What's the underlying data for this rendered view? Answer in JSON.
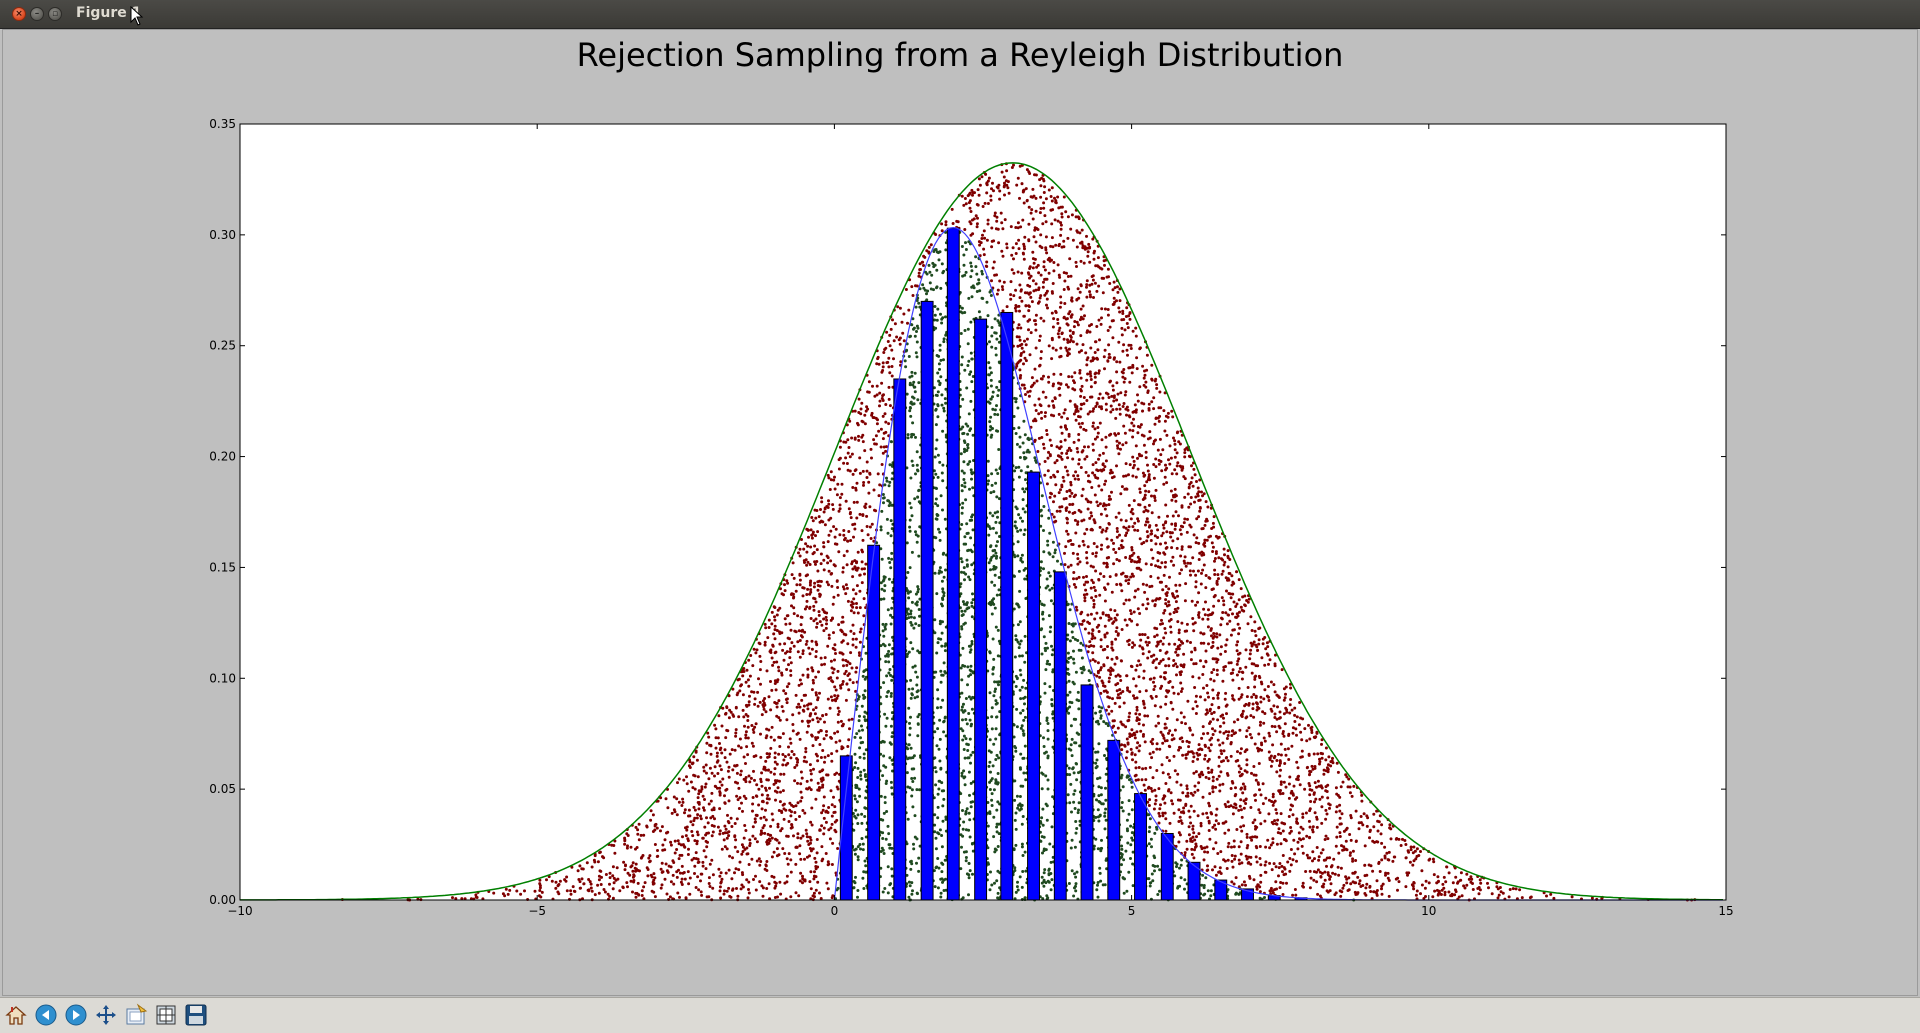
{
  "window": {
    "title": "Figure 1"
  },
  "toolbar": {
    "buttons": [
      {
        "name": "home-icon",
        "label": "Home"
      },
      {
        "name": "back-icon",
        "label": "Back"
      },
      {
        "name": "forward-icon",
        "label": "Forward"
      },
      {
        "name": "pan-icon",
        "label": "Pan"
      },
      {
        "name": "zoom-icon",
        "label": "Zoom"
      },
      {
        "name": "subplots-icon",
        "label": "Configure subplots"
      },
      {
        "name": "save-icon",
        "label": "Save"
      }
    ]
  },
  "chart_data": {
    "type": "bar",
    "title": "Rejection Sampling from a Reyleigh Distribution",
    "xlabel": "",
    "ylabel": "",
    "xlim": [
      -10,
      15
    ],
    "ylim": [
      0,
      0.35
    ],
    "xticks": [
      -10,
      -5,
      0,
      5,
      10,
      15
    ],
    "xtick_labels": [
      "−10",
      "−5",
      "0",
      "5",
      "10",
      "15"
    ],
    "yticks": [
      0,
      0.05,
      0.1,
      0.15,
      0.2,
      0.25,
      0.3,
      0.35
    ],
    "ytick_labels": [
      "0.00",
      "0.05",
      "0.10",
      "0.15",
      "0.20",
      "0.25",
      "0.30",
      "0.35"
    ],
    "grid": false,
    "colors": {
      "bars": "#0000ff",
      "envelope": "#008000",
      "target": "#4040ff",
      "rejected": "#800000",
      "accepted": "#1f4a1f"
    },
    "envelope": {
      "kind": "gaussian",
      "mean": 3.0,
      "std": 3.0,
      "scale": 2.5
    },
    "target": {
      "kind": "rayleigh",
      "sigma": 2.0
    },
    "histogram": {
      "x": [
        0.2,
        0.66,
        1.1,
        1.56,
        2.0,
        2.46,
        2.9,
        3.35,
        3.8,
        4.25,
        4.7,
        5.15,
        5.6,
        6.05,
        6.5,
        6.95,
        7.4,
        7.85
      ],
      "values": [
        0.065,
        0.16,
        0.235,
        0.27,
        0.303,
        0.262,
        0.265,
        0.193,
        0.148,
        0.097,
        0.072,
        0.048,
        0.03,
        0.017,
        0.009,
        0.005,
        0.002,
        0.001
      ],
      "bar_width": 0.2
    }
  }
}
